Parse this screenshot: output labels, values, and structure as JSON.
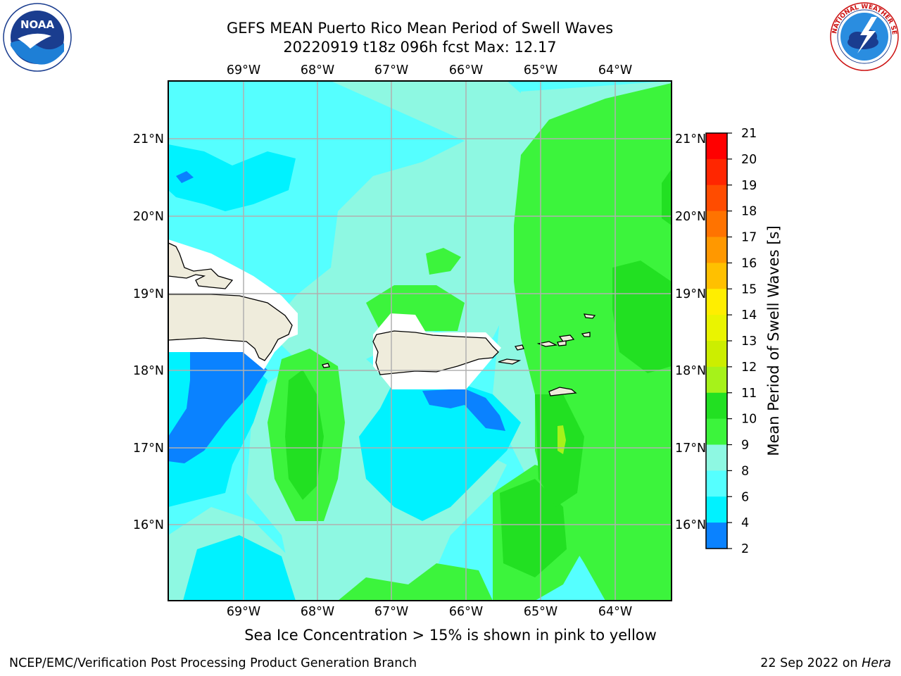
{
  "header": {
    "title_line1": "GEFS MEAN Puerto Rico Mean Period of Swell Waves",
    "title_line2": "20220919 t18z 096h fcst   Max: 12.17"
  },
  "logos": {
    "left": {
      "name": "NOAA",
      "ring_text": "NATIONAL OCEANIC AND ATMOSPHERIC ADMINISTRATION",
      "bottom_text": "U.S. DEPARTMENT OF COMMERCE"
    },
    "right": {
      "name": "NATIONAL WEATHER SERVICE"
    }
  },
  "map": {
    "lon_labels": [
      "69°W",
      "68°W",
      "67°W",
      "66°W",
      "65°W",
      "64°W"
    ],
    "lat_labels": [
      "21°N",
      "20°N",
      "19°N",
      "18°N",
      "17°N",
      "16°N"
    ],
    "colors": {
      "c8_9": "#55ffff",
      "c6_8": "#00f2ff",
      "c9_10": "#8ef8e2",
      "c10_11": "#3cf43c",
      "c11_12": "#22e022",
      "c12_13": "#a6f21a",
      "c4_6": "#0a82ff",
      "land": "#efecdc",
      "mask": "#ffffff",
      "grid": "#b0b0b0"
    }
  },
  "colorbar": {
    "label": "Mean Period of Swell Waves [s]",
    "ticks": [
      "21",
      "20",
      "19",
      "18",
      "17",
      "16",
      "15",
      "14",
      "13",
      "12",
      "11",
      "10",
      "9",
      "8",
      "6",
      "4",
      "2"
    ],
    "colors": [
      "#ff0000",
      "#ff2600",
      "#ff4c00",
      "#ff7300",
      "#ff9800",
      "#ffc000",
      "#ffee00",
      "#eaf400",
      "#ccee00",
      "#a6f21a",
      "#22e022",
      "#3cf43c",
      "#8ef8e2",
      "#55ffff",
      "#00f2ff",
      "#0a82ff",
      "#0000ff"
    ]
  },
  "caption": "Sea Ice Concentration > 15% is shown in pink to yellow",
  "footer": {
    "left": "NCEP/EMC/Verification Post Processing Product Generation Branch",
    "right_prefix": "22 Sep 2022 on ",
    "right_machine": "Hera"
  }
}
